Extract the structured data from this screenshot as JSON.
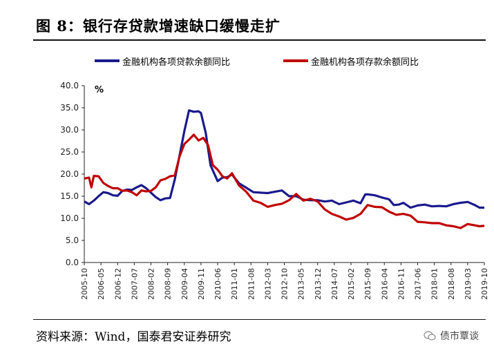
{
  "title": "图 8：银行存贷款增速缺口缓慢走扩",
  "source": "资料来源：Wind，国泰君安证券研究",
  "watermark": "债市覃谈",
  "colors": {
    "loans": "#1a1a8c",
    "deposits": "#c00000"
  },
  "chart_data": {
    "type": "line",
    "ylabel": "%",
    "ylim": [
      0,
      40
    ],
    "yticks": [
      "0.0",
      "5.0",
      "10.0",
      "15.0",
      "20.0",
      "25.0",
      "30.0",
      "35.0",
      "40.0"
    ],
    "xlim": [
      "2005-10",
      "2019-10"
    ],
    "xticks": [
      "2005-10",
      "2006-05",
      "2006-12",
      "2007-07",
      "2008-02",
      "2008-09",
      "2009-04",
      "2009-11",
      "2010-06",
      "2011-01",
      "2011-08",
      "2012-03",
      "2012-10",
      "2013-05",
      "2013-12",
      "2014-07",
      "2015-02",
      "2015-09",
      "2016-04",
      "2016-11",
      "2017-06",
      "2018-01",
      "2018-08",
      "2019-03",
      "2019-10"
    ],
    "grid": false,
    "legend_position": "top",
    "series": [
      {
        "name": "金融机构各项贷款余额同比",
        "points": [
          [
            "2005-10",
            13.8
          ],
          [
            "2005-12",
            13.2
          ],
          [
            "2006-02",
            14.0
          ],
          [
            "2006-04",
            15.0
          ],
          [
            "2006-06",
            15.9
          ],
          [
            "2006-08",
            15.7
          ],
          [
            "2006-10",
            15.2
          ],
          [
            "2006-12",
            15.1
          ],
          [
            "2007-02",
            16.2
          ],
          [
            "2007-04",
            16.5
          ],
          [
            "2007-06",
            16.4
          ],
          [
            "2007-08",
            17.0
          ],
          [
            "2007-10",
            17.5
          ],
          [
            "2007-12",
            16.8
          ],
          [
            "2008-02",
            15.8
          ],
          [
            "2008-04",
            14.8
          ],
          [
            "2008-06",
            14.1
          ],
          [
            "2008-08",
            14.5
          ],
          [
            "2008-10",
            14.6
          ],
          [
            "2008-12",
            18.8
          ],
          [
            "2009-02",
            24.2
          ],
          [
            "2009-04",
            29.7
          ],
          [
            "2009-06",
            34.4
          ],
          [
            "2009-08",
            34.1
          ],
          [
            "2009-10",
            34.2
          ],
          [
            "2009-11",
            33.8
          ],
          [
            "2010-01",
            29.3
          ],
          [
            "2010-03",
            22.0
          ],
          [
            "2010-06",
            18.4
          ],
          [
            "2010-08",
            19.2
          ],
          [
            "2010-10",
            19.3
          ],
          [
            "2010-12",
            19.9
          ],
          [
            "2011-03",
            17.9
          ],
          [
            "2011-06",
            16.9
          ],
          [
            "2011-09",
            15.9
          ],
          [
            "2011-12",
            15.8
          ],
          [
            "2012-03",
            15.7
          ],
          [
            "2012-06",
            16.0
          ],
          [
            "2012-09",
            16.3
          ],
          [
            "2012-12",
            15.0
          ],
          [
            "2013-03",
            15.0
          ],
          [
            "2013-06",
            14.2
          ],
          [
            "2013-09",
            14.1
          ],
          [
            "2013-12",
            14.1
          ],
          [
            "2014-03",
            13.8
          ],
          [
            "2014-06",
            14.0
          ],
          [
            "2014-09",
            13.2
          ],
          [
            "2014-12",
            13.6
          ],
          [
            "2015-03",
            14.0
          ],
          [
            "2015-06",
            13.4
          ],
          [
            "2015-08",
            15.4
          ],
          [
            "2015-09",
            15.4
          ],
          [
            "2015-12",
            15.2
          ],
          [
            "2016-03",
            14.7
          ],
          [
            "2016-06",
            14.3
          ],
          [
            "2016-08",
            13.0
          ],
          [
            "2016-10",
            13.1
          ],
          [
            "2016-12",
            13.5
          ],
          [
            "2017-03",
            12.4
          ],
          [
            "2017-06",
            12.9
          ],
          [
            "2017-09",
            13.1
          ],
          [
            "2017-12",
            12.7
          ],
          [
            "2018-03",
            12.8
          ],
          [
            "2018-06",
            12.7
          ],
          [
            "2018-09",
            13.2
          ],
          [
            "2018-12",
            13.5
          ],
          [
            "2019-03",
            13.7
          ],
          [
            "2019-06",
            13.0
          ],
          [
            "2019-08",
            12.4
          ],
          [
            "2019-10",
            12.4
          ]
        ]
      },
      {
        "name": "金融机构各项存款余额同比",
        "points": [
          [
            "2005-10",
            19.0
          ],
          [
            "2005-12",
            19.2
          ],
          [
            "2006-01",
            17.0
          ],
          [
            "2006-02",
            19.6
          ],
          [
            "2006-04",
            19.5
          ],
          [
            "2006-06",
            18.0
          ],
          [
            "2006-08",
            17.3
          ],
          [
            "2006-10",
            16.8
          ],
          [
            "2006-12",
            16.8
          ],
          [
            "2007-02",
            16.2
          ],
          [
            "2007-04",
            16.3
          ],
          [
            "2007-06",
            15.9
          ],
          [
            "2007-08",
            15.2
          ],
          [
            "2007-10",
            16.3
          ],
          [
            "2007-12",
            16.1
          ],
          [
            "2008-02",
            16.2
          ],
          [
            "2008-04",
            17.0
          ],
          [
            "2008-06",
            18.6
          ],
          [
            "2008-08",
            18.9
          ],
          [
            "2008-10",
            19.5
          ],
          [
            "2008-12",
            19.7
          ],
          [
            "2009-02",
            24.0
          ],
          [
            "2009-04",
            26.8
          ],
          [
            "2009-06",
            27.8
          ],
          [
            "2009-08",
            28.9
          ],
          [
            "2009-10",
            27.6
          ],
          [
            "2009-12",
            28.2
          ],
          [
            "2010-02",
            26.5
          ],
          [
            "2010-04",
            22.0
          ],
          [
            "2010-06",
            21.0
          ],
          [
            "2010-08",
            19.5
          ],
          [
            "2010-10",
            19.0
          ],
          [
            "2010-12",
            20.2
          ],
          [
            "2011-03",
            17.4
          ],
          [
            "2011-06",
            16.0
          ],
          [
            "2011-09",
            14.0
          ],
          [
            "2011-12",
            13.5
          ],
          [
            "2012-03",
            12.6
          ],
          [
            "2012-06",
            13.0
          ],
          [
            "2012-09",
            13.3
          ],
          [
            "2012-12",
            14.1
          ],
          [
            "2013-03",
            15.5
          ],
          [
            "2013-06",
            14.0
          ],
          [
            "2013-09",
            14.4
          ],
          [
            "2013-12",
            13.8
          ],
          [
            "2014-03",
            12.0
          ],
          [
            "2014-06",
            11.0
          ],
          [
            "2014-09",
            10.4
          ],
          [
            "2014-12",
            9.7
          ],
          [
            "2015-03",
            10.1
          ],
          [
            "2015-06",
            11.0
          ],
          [
            "2015-09",
            13.0
          ],
          [
            "2015-12",
            12.6
          ],
          [
            "2016-03",
            12.5
          ],
          [
            "2016-06",
            11.5
          ],
          [
            "2016-09",
            10.8
          ],
          [
            "2016-12",
            11.0
          ],
          [
            "2017-03",
            10.6
          ],
          [
            "2017-06",
            9.2
          ],
          [
            "2017-09",
            9.1
          ],
          [
            "2017-12",
            8.9
          ],
          [
            "2018-03",
            8.9
          ],
          [
            "2018-06",
            8.4
          ],
          [
            "2018-09",
            8.2
          ],
          [
            "2018-12",
            7.8
          ],
          [
            "2019-03",
            8.7
          ],
          [
            "2019-06",
            8.4
          ],
          [
            "2019-08",
            8.2
          ],
          [
            "2019-10",
            8.3
          ]
        ]
      }
    ]
  }
}
